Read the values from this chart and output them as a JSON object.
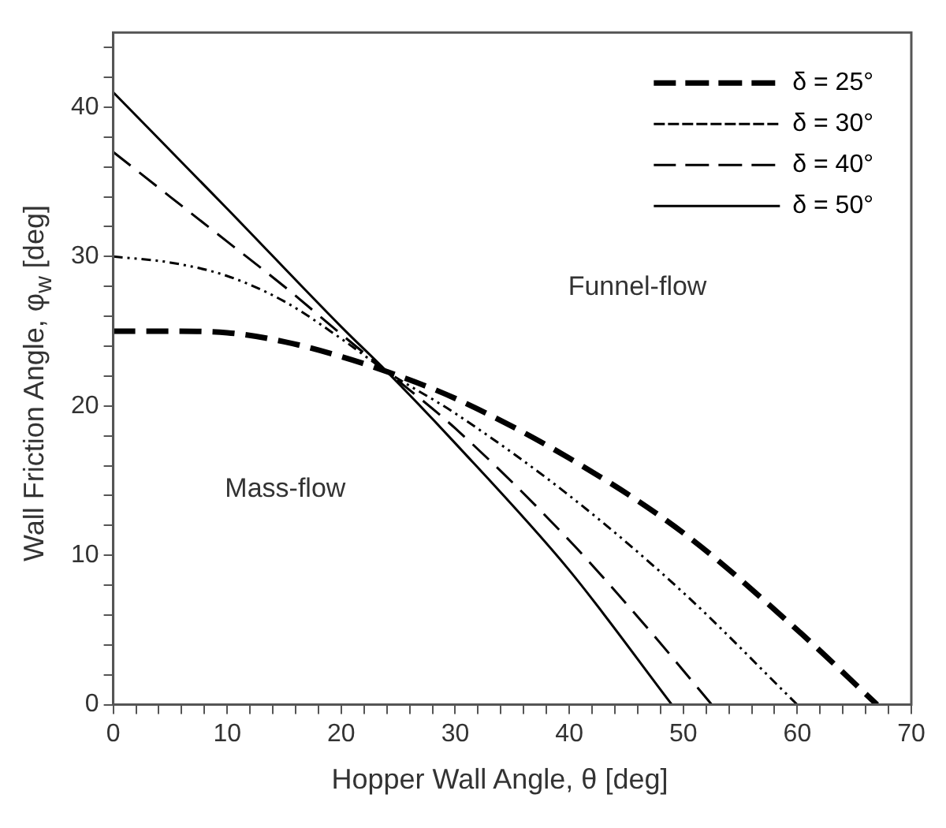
{
  "chart_data": {
    "type": "line",
    "xlabel": "Hopper Wall Angle, θ [deg]",
    "ylabel": "Wall Friction Angle, φ$_{w}$ [deg]",
    "annotations": [
      "Funnel-flow",
      "Mass-flow"
    ],
    "xlim": [
      0,
      70
    ],
    "ylim": [
      0,
      45
    ],
    "xticks": [
      0,
      {
        "value": 2,
        "label": null
      },
      {
        "value": 4,
        "label": null
      },
      {
        "value": 6,
        "label": null
      },
      {
        "value": 8,
        "label": null
      },
      10,
      {
        "value": 12,
        "label": null
      },
      {
        "value": 14,
        "label": null
      },
      {
        "value": 16,
        "label": null
      },
      {
        "value": 18,
        "label": null
      },
      20,
      {
        "value": 22,
        "label": null
      },
      {
        "value": 24,
        "label": null
      },
      {
        "value": 26,
        "label": null
      },
      {
        "value": 28,
        "label": null
      },
      30,
      {
        "value": 32,
        "label": null
      },
      {
        "value": 34,
        "label": null
      },
      {
        "value": 36,
        "label": null
      },
      {
        "value": 38,
        "label": null
      },
      40,
      {
        "value": 42,
        "label": null
      },
      {
        "value": 44,
        "label": null
      },
      {
        "value": 46,
        "label": null
      },
      {
        "value": 48,
        "label": null
      },
      50,
      {
        "value": 52,
        "label": null
      },
      {
        "value": 54,
        "label": null
      },
      {
        "value": 56,
        "label": null
      },
      {
        "value": 58,
        "label": null
      },
      60,
      {
        "value": 62,
        "label": null
      },
      {
        "value": 64,
        "label": null
      },
      {
        "value": 66,
        "label": null
      },
      {
        "value": 68,
        "label": null
      },
      70
    ],
    "yticks": [
      0,
      {
        "value": 2,
        "label": null
      },
      {
        "value": 4,
        "label": null
      },
      {
        "value": 6,
        "label": null
      },
      {
        "value": 8,
        "label": null
      },
      10,
      {
        "value": 12,
        "label": null
      },
      {
        "value": 14,
        "label": null
      },
      {
        "value": 16,
        "label": null
      },
      {
        "value": 18,
        "label": null
      },
      20,
      {
        "value": 22,
        "label": null
      },
      {
        "value": 24,
        "label": null
      },
      {
        "value": 26,
        "label": null
      },
      {
        "value": 28,
        "label": null
      },
      30,
      {
        "value": 32,
        "label": null
      },
      {
        "value": 34,
        "label": null
      },
      {
        "value": 36,
        "label": null
      },
      {
        "value": 38,
        "label": null
      },
      40,
      {
        "value": 42,
        "label": null
      },
      {
        "value": 44,
        "label": null
      }
    ],
    "grid": false,
    "legend": "top right",
    "marker": "none",
    "series": [
      {
        "name": "δ = 25°",
        "color": "#000000",
        "line_style": "dashed",
        "x": [
          0,
          5,
          10,
          15,
          20,
          24,
          30,
          40,
          50,
          60,
          67
        ],
        "values": [
          25,
          25,
          24.9,
          24.3,
          23.3,
          22.3,
          20.5,
          16.5,
          11.5,
          5,
          0
        ]
      },
      {
        "name": "δ = 30°",
        "color": "#000000",
        "line_style": "dotted",
        "x": [
          0,
          5,
          10,
          15,
          20,
          24,
          30,
          40,
          50,
          60
        ],
        "values": [
          30,
          29.6,
          28.7,
          27,
          24.5,
          22.3,
          19.5,
          14,
          7.5,
          0
        ]
      },
      {
        "name": "δ = 40°",
        "color": "#000000",
        "line_style": "dashed",
        "x": [
          0,
          5,
          10,
          15,
          20,
          24,
          30,
          40,
          47,
          52.5
        ],
        "values": [
          37,
          34,
          31,
          28,
          24.8,
          22.3,
          18.5,
          11,
          5,
          0
        ]
      },
      {
        "name": "δ = 50°",
        "color": "#000000",
        "line_style": "solid",
        "x": [
          0,
          10,
          20,
          24,
          30,
          40,
          49
        ],
        "values": [
          41,
          33.2,
          25.3,
          22.3,
          17.5,
          9,
          0
        ]
      }
    ]
  }
}
